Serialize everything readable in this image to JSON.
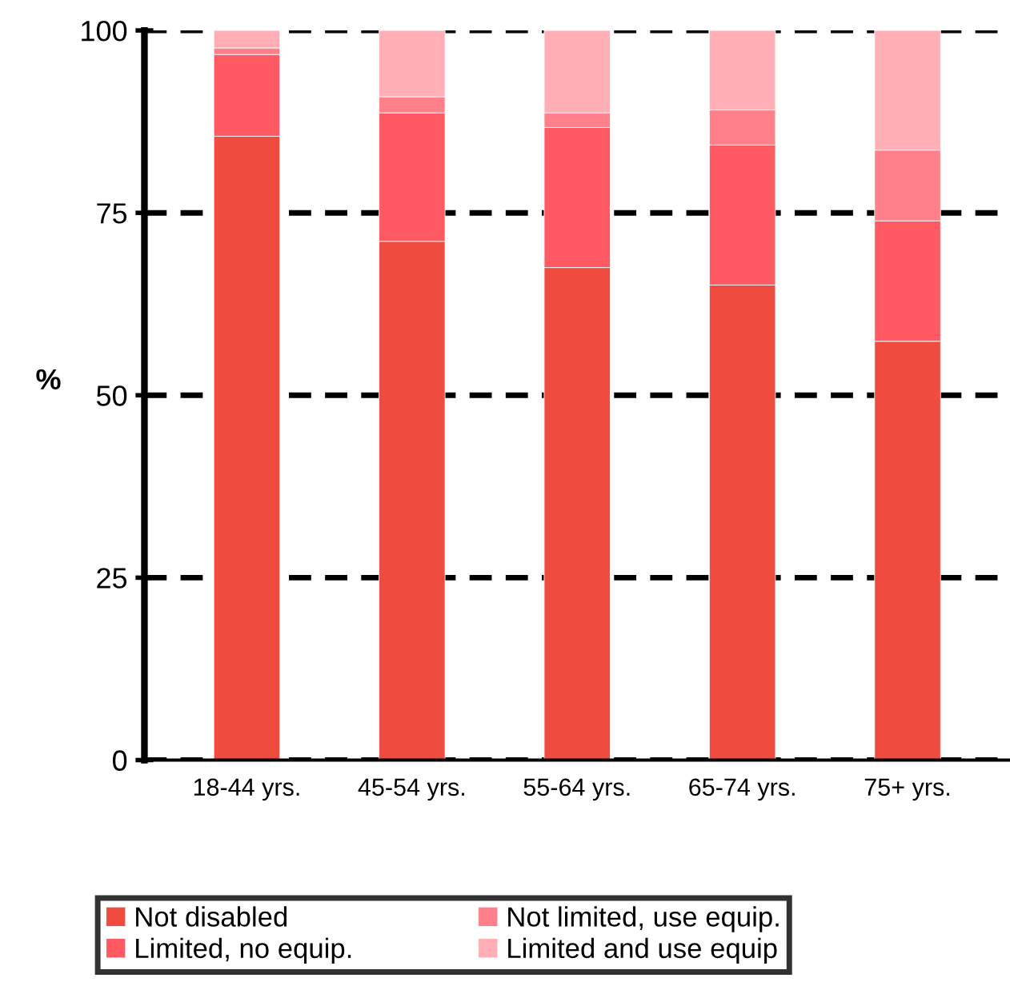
{
  "chart_data": {
    "type": "bar",
    "stacked": true,
    "ylabel": "%",
    "categories": [
      "18-44 yrs.",
      "45-54 yrs.",
      "55-64 yrs.",
      "65-74 yrs.",
      "75+ yrs."
    ],
    "series": [
      {
        "name": "Not disabled",
        "color": "#ef4b3f",
        "values": [
          85.5,
          71.1,
          67.5,
          65.1,
          57.4
        ]
      },
      {
        "name": "Limited, no equip.",
        "color": "#ff5a63",
        "values": [
          11.2,
          17.6,
          19.2,
          19.2,
          16.5
        ]
      },
      {
        "name": "Not limited, use equip.",
        "color": "#ff808a",
        "values": [
          0.9,
          2.2,
          2.0,
          4.8,
          9.7
        ]
      },
      {
        "name": "Limited and use equip",
        "color": "#ffafb5",
        "values": [
          2.4,
          9.1,
          11.3,
          10.9,
          16.4
        ]
      }
    ],
    "ylim": [
      0,
      100
    ],
    "yticks": [
      0,
      25,
      50,
      75,
      100
    ],
    "grid": "y",
    "legend": "bottom"
  }
}
